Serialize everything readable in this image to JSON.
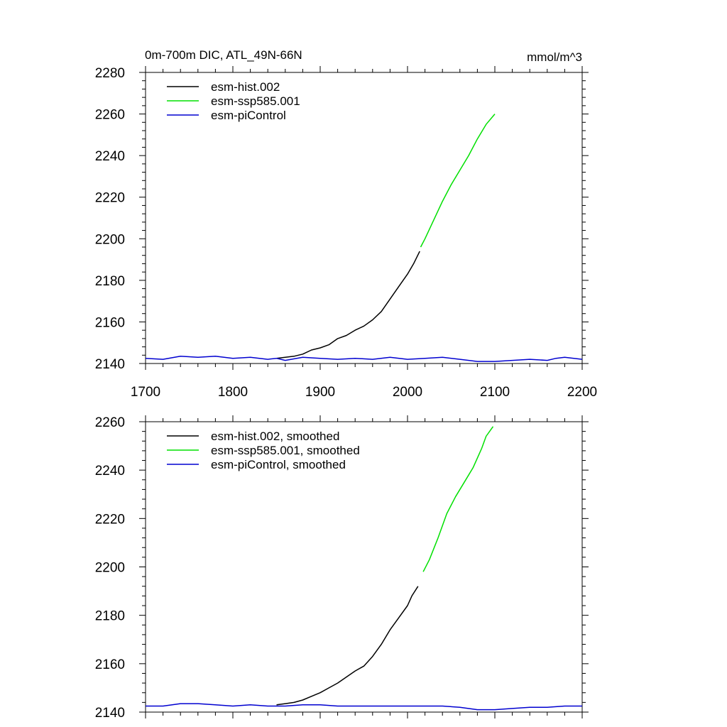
{
  "header": {
    "title": "0m-700m DIC, ATL_49N-66N",
    "units": "mmol/m^3"
  },
  "colors": {
    "hist": "#000000",
    "ssp": "#00e000",
    "picontrol": "#0000d0"
  },
  "chart_data": [
    {
      "type": "line",
      "title": "0m-700m DIC, ATL_49N-66N",
      "units_label": "mmol/m^3",
      "xlim": [
        1700,
        2200
      ],
      "ylim": [
        2140,
        2280
      ],
      "xticks": [
        1700,
        1800,
        1900,
        2000,
        2100,
        2200
      ],
      "yticks": [
        2140,
        2160,
        2180,
        2200,
        2220,
        2240,
        2260,
        2280
      ],
      "grid": false,
      "legend_position": "top-left",
      "series": [
        {
          "name": "esm-hist.002",
          "color": "#000000",
          "points": [
            [
              1850,
              2142.5
            ],
            [
              1860,
              2143
            ],
            [
              1870,
              2143.5
            ],
            [
              1880,
              2144.5
            ],
            [
              1890,
              2146.5
            ],
            [
              1900,
              2147.5
            ],
            [
              1910,
              2149
            ],
            [
              1920,
              2152
            ],
            [
              1930,
              2153.5
            ],
            [
              1940,
              2156
            ],
            [
              1950,
              2158
            ],
            [
              1960,
              2161
            ],
            [
              1970,
              2165
            ],
            [
              1980,
              2171
            ],
            [
              1990,
              2177
            ],
            [
              2000,
              2183
            ],
            [
              2007,
              2188
            ],
            [
              2014,
              2194
            ]
          ]
        },
        {
          "name": "esm-ssp585.001",
          "color": "#00e000",
          "points": [
            [
              2015,
              2196
            ],
            [
              2020,
              2200
            ],
            [
              2030,
              2209
            ],
            [
              2040,
              2218
            ],
            [
              2050,
              2226
            ],
            [
              2060,
              2233
            ],
            [
              2070,
              2240
            ],
            [
              2080,
              2248
            ],
            [
              2090,
              2255
            ],
            [
              2100,
              2260
            ]
          ]
        },
        {
          "name": "esm-piControl",
          "color": "#0000d0",
          "points": [
            [
              1700,
              2142.5
            ],
            [
              1720,
              2142
            ],
            [
              1740,
              2143.5
            ],
            [
              1760,
              2143
            ],
            [
              1780,
              2143.5
            ],
            [
              1800,
              2142.5
            ],
            [
              1820,
              2143
            ],
            [
              1840,
              2142
            ],
            [
              1850,
              2142.5
            ],
            [
              1860,
              2141.5
            ],
            [
              1880,
              2143
            ],
            [
              1900,
              2142.5
            ],
            [
              1920,
              2142
            ],
            [
              1940,
              2142.5
            ],
            [
              1960,
              2142
            ],
            [
              1980,
              2143
            ],
            [
              2000,
              2142
            ],
            [
              2020,
              2142.5
            ],
            [
              2040,
              2143
            ],
            [
              2060,
              2142
            ],
            [
              2080,
              2141
            ],
            [
              2100,
              2141
            ],
            [
              2120,
              2141.5
            ],
            [
              2140,
              2142
            ],
            [
              2160,
              2141.5
            ],
            [
              2170,
              2142.5
            ],
            [
              2180,
              2143
            ],
            [
              2200,
              2142
            ]
          ]
        }
      ]
    },
    {
      "type": "line",
      "xlim": [
        1700,
        2200
      ],
      "ylim": [
        2140,
        2260
      ],
      "xticks": [
        1700,
        1800,
        1900,
        2000,
        2100,
        2200
      ],
      "yticks": [
        2140,
        2160,
        2180,
        2200,
        2220,
        2240,
        2260
      ],
      "grid": false,
      "legend_position": "top-left",
      "series": [
        {
          "name": "esm-hist.002, smoothed",
          "color": "#000000",
          "points": [
            [
              1850,
              2143
            ],
            [
              1860,
              2143.5
            ],
            [
              1870,
              2144
            ],
            [
              1880,
              2145
            ],
            [
              1890,
              2146.5
            ],
            [
              1900,
              2148
            ],
            [
              1910,
              2150
            ],
            [
              1920,
              2152
            ],
            [
              1930,
              2154.5
            ],
            [
              1940,
              2157
            ],
            [
              1950,
              2159
            ],
            [
              1960,
              2163
            ],
            [
              1970,
              2168
            ],
            [
              1980,
              2174
            ],
            [
              1990,
              2179
            ],
            [
              2000,
              2184
            ],
            [
              2005,
              2188
            ],
            [
              2012,
              2192
            ]
          ]
        },
        {
          "name": "esm-ssp585.001, smoothed",
          "color": "#00e000",
          "points": [
            [
              2018,
              2198
            ],
            [
              2025,
              2203
            ],
            [
              2035,
              2212
            ],
            [
              2045,
              2222
            ],
            [
              2055,
              2229
            ],
            [
              2065,
              2235
            ],
            [
              2075,
              2241
            ],
            [
              2085,
              2249
            ],
            [
              2090,
              2254
            ],
            [
              2098,
              2258
            ]
          ]
        },
        {
          "name": "esm-piControl, smoothed",
          "color": "#0000d0",
          "points": [
            [
              1700,
              2142.5
            ],
            [
              1720,
              2142.5
            ],
            [
              1740,
              2143.5
            ],
            [
              1760,
              2143.5
            ],
            [
              1780,
              2143
            ],
            [
              1800,
              2142.5
            ],
            [
              1820,
              2143
            ],
            [
              1840,
              2142.5
            ],
            [
              1860,
              2142.5
            ],
            [
              1880,
              2143
            ],
            [
              1900,
              2143
            ],
            [
              1920,
              2142.5
            ],
            [
              1940,
              2142.5
            ],
            [
              1960,
              2142.5
            ],
            [
              1980,
              2142.5
            ],
            [
              2000,
              2142.5
            ],
            [
              2020,
              2142.5
            ],
            [
              2040,
              2142.5
            ],
            [
              2060,
              2142
            ],
            [
              2080,
              2141
            ],
            [
              2100,
              2141
            ],
            [
              2120,
              2141.5
            ],
            [
              2140,
              2142
            ],
            [
              2160,
              2142
            ],
            [
              2180,
              2142.5
            ],
            [
              2200,
              2142.5
            ]
          ]
        }
      ]
    }
  ]
}
